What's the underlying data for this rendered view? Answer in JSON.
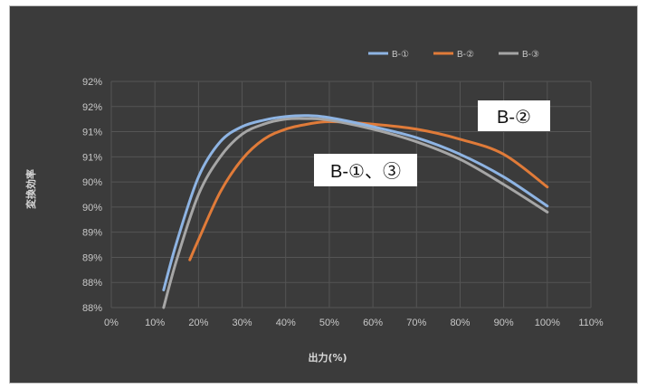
{
  "chart_data": {
    "type": "line",
    "title": "",
    "xlabel": "出力(%)",
    "ylabel": "変換効率",
    "x_ticks": [
      "0%",
      "10%",
      "20%",
      "30%",
      "40%",
      "50%",
      "60%",
      "70%",
      "80%",
      "90%",
      "100%",
      "110%"
    ],
    "y_ticks": [
      "92%",
      "92%",
      "91%",
      "91%",
      "90%",
      "90%",
      "89%",
      "89%",
      "88%",
      "88%"
    ],
    "xlim": [
      0,
      110
    ],
    "ylim": [
      88,
      92.5
    ],
    "grid": true,
    "legend_position": "top-right",
    "series": [
      {
        "name": "B-①",
        "color": "#8eb4e3",
        "x": [
          12,
          15,
          20,
          25,
          30,
          35,
          40,
          45,
          50,
          60,
          70,
          80,
          90,
          100
        ],
        "y": [
          88.35,
          89.3,
          90.6,
          91.3,
          91.6,
          91.73,
          91.8,
          91.82,
          91.78,
          91.6,
          91.38,
          91.05,
          90.6,
          90.02
        ]
      },
      {
        "name": "B-②",
        "color": "#e07b39",
        "x": [
          18,
          20,
          25,
          30,
          35,
          40,
          45,
          50,
          60,
          70,
          80,
          90,
          100
        ],
        "y": [
          88.95,
          89.35,
          90.3,
          90.95,
          91.35,
          91.55,
          91.65,
          91.7,
          91.65,
          91.55,
          91.35,
          91.05,
          90.4
        ]
      },
      {
        "name": "B-③",
        "color": "#a6a6a6",
        "x": [
          12,
          15,
          20,
          25,
          30,
          35,
          40,
          45,
          50,
          60,
          70,
          80,
          90,
          100
        ],
        "y": [
          88.0,
          88.95,
          90.25,
          91.0,
          91.45,
          91.65,
          91.75,
          91.76,
          91.73,
          91.55,
          91.3,
          90.95,
          90.45,
          89.9
        ]
      }
    ],
    "annotations": [
      "B-②",
      "B-①、③"
    ]
  }
}
